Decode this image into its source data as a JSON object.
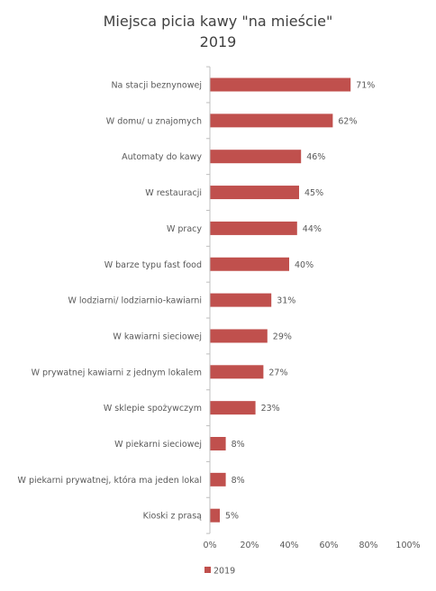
{
  "chart_data": {
    "type": "bar",
    "orientation": "horizontal",
    "title": "Miejsca picia kawy \"na mieście\"",
    "subtitle": "2019",
    "categories": [
      "Na stacji beznynowej",
      "W domu/ u znajomych",
      "Automaty do kawy",
      "W restauracji",
      "W pracy",
      "W barze typu fast food",
      "W lodziarni/ lodziarnio-kawiarni",
      "W kawiarni sieciowej",
      "W prywatnej kawiarni z jednym lokalem",
      "W sklepie spożywczym",
      "W piekarni sieciowej",
      "W piekarni prywatnej, która ma jeden lokal",
      "Kioski z prasą"
    ],
    "series": [
      {
        "name": "2019",
        "values": [
          71,
          62,
          46,
          45,
          44,
          40,
          31,
          29,
          27,
          23,
          8,
          8,
          5
        ],
        "data_labels": [
          "71%",
          "62%",
          "46%",
          "45%",
          "44%",
          "40%",
          "31%",
          "29%",
          "27%",
          "23%",
          "8%",
          "8%",
          "5%"
        ]
      }
    ],
    "xlim": [
      0,
      100
    ],
    "x_ticks": [
      "0%",
      "20%",
      "40%",
      "60%",
      "80%",
      "100%"
    ],
    "x_tick_values": [
      0,
      20,
      40,
      60,
      80,
      100
    ],
    "grid": false,
    "legend": "bottom-left",
    "colors": {
      "bar": "#C0504D",
      "axis": "#BFBFBF",
      "text": "#595959",
      "title": "#404040"
    }
  }
}
